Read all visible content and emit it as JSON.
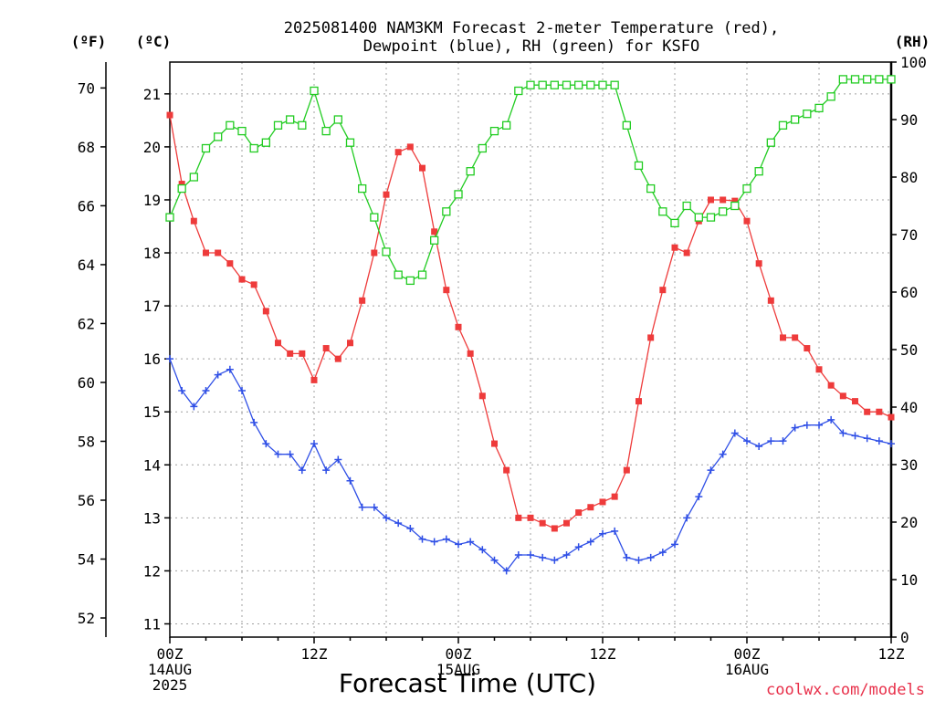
{
  "chart_data": {
    "type": "line",
    "title_line1": "2025081400 NAM3KM Forecast 2-meter Temperature (red),",
    "title_line2": "Dewpoint (blue), RH (green) for KSFO",
    "xlabel": "Forecast Time (UTC)",
    "credit": "coolwx.com/models",
    "units": {
      "fahrenheit": "(ºF)",
      "celsius": "(ºC)",
      "rh": "(RH)"
    },
    "x_range_hours": [
      0,
      60
    ],
    "y_celsius_range": [
      10.75,
      21.6
    ],
    "y_rh_range": [
      0,
      100
    ],
    "fahrenheit_ticks": [
      {
        "value": 52,
        "label": "52"
      },
      {
        "value": 54,
        "label": "54"
      },
      {
        "value": 56,
        "label": "56"
      },
      {
        "value": 58,
        "label": "58"
      },
      {
        "value": 60,
        "label": "60"
      },
      {
        "value": 62,
        "label": "62"
      },
      {
        "value": 64,
        "label": "64"
      },
      {
        "value": 66,
        "label": "66"
      },
      {
        "value": 68,
        "label": "68"
      },
      {
        "value": 70,
        "label": "70"
      }
    ],
    "celsius_ticks": [
      {
        "value": 11,
        "label": "11"
      },
      {
        "value": 12,
        "label": "12"
      },
      {
        "value": 13,
        "label": "13"
      },
      {
        "value": 14,
        "label": "14"
      },
      {
        "value": 15,
        "label": "15"
      },
      {
        "value": 16,
        "label": "16"
      },
      {
        "value": 17,
        "label": "17"
      },
      {
        "value": 18,
        "label": "18"
      },
      {
        "value": 19,
        "label": "19"
      },
      {
        "value": 20,
        "label": "20"
      },
      {
        "value": 21,
        "label": "21"
      }
    ],
    "rh_ticks": [
      {
        "value": 0,
        "label": "0"
      },
      {
        "value": 10,
        "label": "10"
      },
      {
        "value": 20,
        "label": "20"
      },
      {
        "value": 30,
        "label": "30"
      },
      {
        "value": 40,
        "label": "40"
      },
      {
        "value": 50,
        "label": "50"
      },
      {
        "value": 60,
        "label": "60"
      },
      {
        "value": 70,
        "label": "70"
      },
      {
        "value": 80,
        "label": "80"
      },
      {
        "value": 90,
        "label": "90"
      },
      {
        "value": 100,
        "label": "100"
      }
    ],
    "x_ticks": [
      {
        "hour": 0,
        "lines": [
          "00Z",
          "14AUG",
          "2025"
        ]
      },
      {
        "hour": 12,
        "lines": [
          "12Z"
        ]
      },
      {
        "hour": 24,
        "lines": [
          "00Z",
          "15AUG"
        ]
      },
      {
        "hour": 36,
        "lines": [
          "12Z"
        ]
      },
      {
        "hour": 48,
        "lines": [
          "00Z",
          "16AUG"
        ]
      },
      {
        "hour": 60,
        "lines": [
          "12Z"
        ]
      }
    ],
    "series": [
      {
        "key": "temperature",
        "marker": "filled-square",
        "color": "#ee3b3b",
        "values": [
          20.6,
          19.3,
          18.6,
          18.0,
          18.0,
          17.8,
          17.5,
          17.4,
          16.9,
          16.3,
          16.1,
          16.1,
          15.6,
          16.2,
          16.0,
          16.3,
          17.1,
          18.0,
          19.1,
          19.9,
          20.0,
          19.6,
          18.4,
          17.3,
          16.6,
          16.1,
          15.3,
          14.4,
          13.9,
          13.0,
          13.0,
          12.9,
          12.8,
          12.9,
          13.1,
          13.2,
          13.3,
          13.4,
          13.9,
          15.2,
          16.4,
          17.3,
          18.1,
          18.0,
          18.6,
          19.0,
          19.0,
          18.98,
          18.6,
          17.8,
          17.1,
          16.4,
          16.4,
          16.2,
          15.8,
          15.5,
          15.3,
          15.2,
          15.0,
          15.0,
          14.9
        ]
      },
      {
        "key": "dewpoint",
        "marker": "plus",
        "color": "#2f4fe6",
        "values": [
          16.0,
          15.4,
          15.1,
          15.4,
          15.7,
          15.8,
          15.4,
          14.8,
          14.4,
          14.2,
          14.2,
          13.9,
          14.4,
          13.9,
          14.1,
          13.7,
          13.2,
          13.2,
          13.0,
          12.9,
          12.8,
          12.6,
          12.55,
          12.6,
          12.5,
          12.55,
          12.4,
          12.2,
          12.0,
          12.3,
          12.3,
          12.25,
          12.2,
          12.3,
          12.45,
          12.55,
          12.7,
          12.75,
          12.25,
          12.2,
          12.25,
          12.35,
          12.5,
          13.0,
          13.4,
          13.9,
          14.2,
          14.6,
          14.45,
          14.35,
          14.45,
          14.45,
          14.7,
          14.75,
          14.75,
          14.85,
          14.6,
          14.55,
          14.5,
          14.45,
          14.4
        ]
      },
      {
        "key": "rh",
        "marker": "open-square",
        "color": "#22cc22",
        "values": [
          73,
          78,
          80,
          85,
          87,
          89,
          88,
          85,
          86,
          89,
          90,
          89,
          95,
          88,
          90,
          86,
          78,
          73,
          67,
          63,
          62,
          63,
          69,
          74,
          77,
          81,
          85,
          88,
          89,
          95,
          96,
          96,
          96,
          96,
          96,
          96,
          96,
          96,
          89,
          82,
          78,
          74,
          72,
          75,
          73,
          73,
          74,
          75,
          78,
          81,
          86,
          89,
          90,
          91,
          92,
          94,
          97,
          97,
          97,
          97,
          97
        ]
      }
    ]
  }
}
